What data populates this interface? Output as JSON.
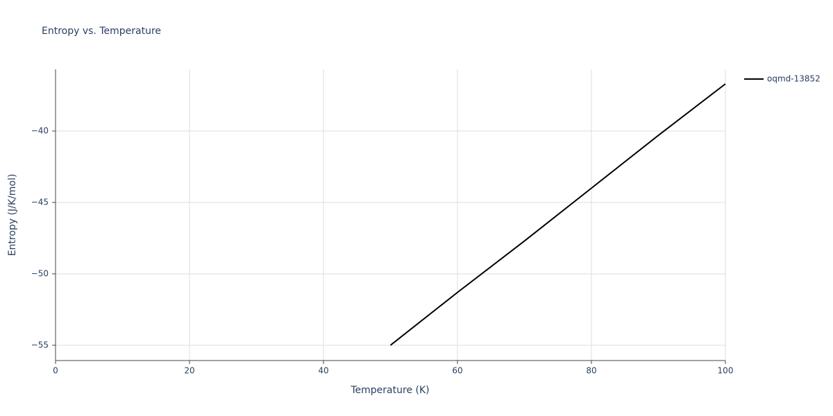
{
  "chart_data": {
    "type": "line",
    "title": "Entropy vs. Temperature",
    "x_label": "Temperature (K)",
    "y_label": "Entropy (J/K/mol)",
    "x": [
      50,
      60,
      70,
      80,
      90,
      100
    ],
    "series": [
      {
        "name": "oqmd-13852",
        "color": "#000000",
        "values": [
          -55,
          -51.3,
          -47.7,
          -44.0,
          -40.3,
          -36.7
        ]
      }
    ],
    "xlim": [
      0,
      100
    ],
    "xticks": [
      0,
      20,
      40,
      60,
      80,
      100
    ],
    "ylim": [
      -56.07,
      -35.68
    ],
    "yticks": [
      {
        "value": -40,
        "label": "−40"
      },
      {
        "value": -45,
        "label": "−45"
      },
      {
        "value": -50,
        "label": "−50"
      },
      {
        "value": -55,
        "label": "−55"
      }
    ],
    "grid": true,
    "legend": "right"
  }
}
